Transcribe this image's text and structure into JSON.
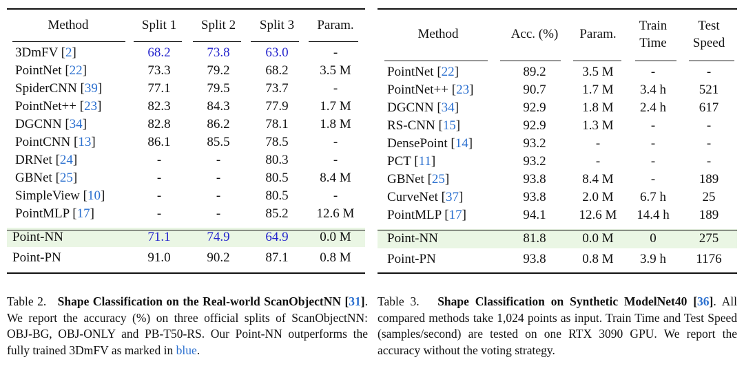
{
  "table2": {
    "headers": [
      "Method",
      "Split 1",
      "Split 2",
      "Split 3",
      "Param."
    ],
    "rows": [
      {
        "name": "3DmFV",
        "ref": "2",
        "s1": "68.2",
        "s2": "73.8",
        "s3": "63.0",
        "param": "-"
      },
      {
        "name": "PointNet",
        "ref": "22",
        "s1": "73.3",
        "s2": "79.2",
        "s3": "68.2",
        "param": "3.5 M"
      },
      {
        "name": "SpiderCNN",
        "ref": "39",
        "s1": "77.1",
        "s2": "79.5",
        "s3": "73.7",
        "param": "-"
      },
      {
        "name": "PointNet++",
        "ref": "23",
        "s1": "82.3",
        "s2": "84.3",
        "s3": "77.9",
        "param": "1.7 M"
      },
      {
        "name": "DGCNN",
        "ref": "34",
        "s1": "82.8",
        "s2": "86.2",
        "s3": "78.1",
        "param": "1.8 M"
      },
      {
        "name": "PointCNN",
        "ref": "13",
        "s1": "86.1",
        "s2": "85.5",
        "s3": "78.5",
        "param": "-"
      },
      {
        "name": "DRNet",
        "ref": "24",
        "s1": "-",
        "s2": "-",
        "s3": "80.3",
        "param": "-"
      },
      {
        "name": "GBNet",
        "ref": "25",
        "s1": "-",
        "s2": "-",
        "s3": "80.5",
        "param": "8.4 M"
      },
      {
        "name": "SimpleView",
        "ref": "10",
        "s1": "-",
        "s2": "-",
        "s3": "80.5",
        "param": "-"
      },
      {
        "name": "PointMLP",
        "ref": "17",
        "s1": "-",
        "s2": "-",
        "s3": "85.2",
        "param": "12.6 M"
      }
    ],
    "point_nn": {
      "name": "Point-NN",
      "s1": "71.1",
      "s2": "74.9",
      "s3": "64.9",
      "param": "0.0 M"
    },
    "point_pn": {
      "name": "Point-PN",
      "s1": "91.0",
      "s2": "90.2",
      "s3": "87.1",
      "param": "0.8 M"
    },
    "caption": {
      "label": "Table 2.",
      "title": "Shape Classification on the Real-world ScanObjectNN",
      "ref": "31",
      "text1": ". We report the accuracy (%) on three official splits of ScanObjectNN: OBJ-BG, OBJ-ONLY and PB-T50-RS. Our Point-NN outperforms the fully trained 3DmFV as marked in ",
      "blue_word": "blue",
      "end": "."
    }
  },
  "table3": {
    "headers": {
      "method": "Method",
      "acc": "Acc. (%)",
      "param": "Param.",
      "train1": "Train",
      "train2": "Time",
      "test1": "Test",
      "test2": "Speed"
    },
    "rows": [
      {
        "name": "PointNet",
        "ref": "22",
        "acc": "89.2",
        "param": "3.5 M",
        "train": "-",
        "test": "-"
      },
      {
        "name": "PointNet++",
        "ref": "23",
        "acc": "90.7",
        "param": "1.7 M",
        "train": "3.4 h",
        "test": "521"
      },
      {
        "name": "DGCNN",
        "ref": "34",
        "acc": "92.9",
        "param": "1.8 M",
        "train": "2.4 h",
        "test": "617"
      },
      {
        "name": "RS-CNN",
        "ref": "15",
        "acc": "92.9",
        "param": "1.3 M",
        "train": "-",
        "test": "-"
      },
      {
        "name": "DensePoint",
        "ref": "14",
        "acc": "93.2",
        "param": "-",
        "train": "-",
        "test": "-"
      },
      {
        "name": "PCT",
        "ref": "11",
        "acc": "93.2",
        "param": "-",
        "train": "-",
        "test": "-"
      },
      {
        "name": "GBNet",
        "ref": "25",
        "acc": "93.8",
        "param": "8.4 M",
        "train": "-",
        "test": "189"
      },
      {
        "name": "CurveNet",
        "ref": "37",
        "acc": "93.8",
        "param": "2.0 M",
        "train": "6.7 h",
        "test": "25"
      },
      {
        "name": "PointMLP",
        "ref": "17",
        "acc": "94.1",
        "param": "12.6 M",
        "train": "14.4 h",
        "test": "189"
      }
    ],
    "point_nn": {
      "name": "Point-NN",
      "acc": "81.8",
      "param": "0.0 M",
      "train": "0",
      "test": "275"
    },
    "point_pn": {
      "name": "Point-PN",
      "acc": "93.8",
      "param": "0.8 M",
      "train": "3.9 h",
      "test": "1176"
    },
    "caption": {
      "label": "Table 3.",
      "title": "Shape Classification on Synthetic ModelNet40",
      "ref": "36",
      "text1": ". All compared methods take 1,024 points as input. Train Time and Test Speed (samples/second) are tested on one RTX 3090 GPU. We report the accuracy without the voting strategy."
    }
  }
}
